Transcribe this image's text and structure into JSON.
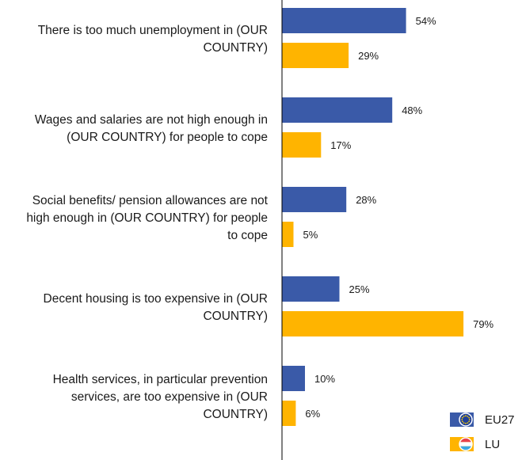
{
  "chart_data": {
    "type": "bar",
    "orientation": "horizontal",
    "categories": [
      [
        "There is too much unemployment in (OUR",
        "COUNTRY)"
      ],
      [
        "Wages and salaries are not high enough in",
        "(OUR COUNTRY) for people to cope"
      ],
      [
        "Social benefits/ pension allowances are not",
        "high enough in (OUR COUNTRY) for people",
        "to cope"
      ],
      [
        "Decent housing is too expensive in (OUR",
        "COUNTRY)"
      ],
      [
        "Health services, in particular prevention",
        "services, are too expensive in (OUR",
        "COUNTRY)"
      ]
    ],
    "series": [
      {
        "name": "EU27",
        "color": "#3a5aa8",
        "values": [
          54,
          48,
          28,
          25,
          10
        ],
        "labels": [
          "54%",
          "48%",
          "28%",
          "25%",
          "10%"
        ]
      },
      {
        "name": "LU",
        "color": "#ffb400",
        "values": [
          29,
          17,
          5,
          79,
          6
        ],
        "labels": [
          "29%",
          "17%",
          "5%",
          "79%",
          "6%"
        ]
      }
    ],
    "xlim": [
      0,
      100
    ],
    "grid": false,
    "legend": {
      "placement": "bottom-right",
      "icons": [
        "eu-flag-icon",
        "luxembourg-flag-icon"
      ]
    }
  }
}
